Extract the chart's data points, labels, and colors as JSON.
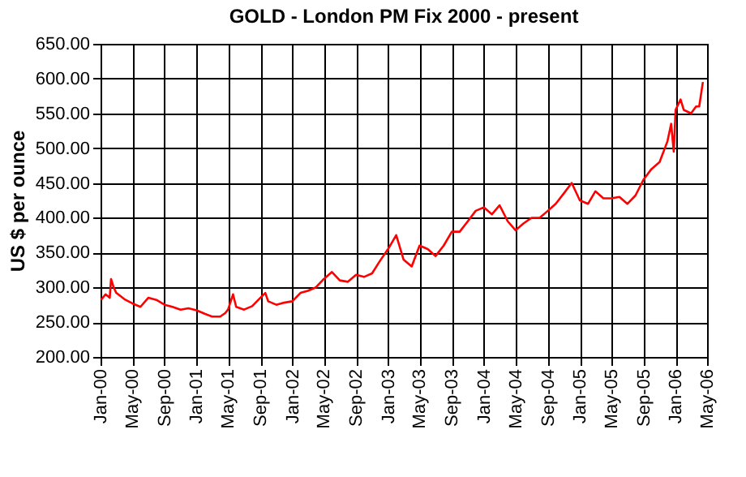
{
  "chart_data": {
    "type": "line",
    "title": "GOLD - London PM Fix 2000 - present",
    "ylabel": "US $ per ounce",
    "grid": true,
    "marker": "none",
    "line_style": "solid",
    "xlim": [
      "2000-01-01",
      "2006-05-01"
    ],
    "ylim": [
      200,
      650
    ],
    "yticks": [
      {
        "value": 200,
        "label": "200.00"
      },
      {
        "value": 250,
        "label": "250.00"
      },
      {
        "value": 300,
        "label": "300.00"
      },
      {
        "value": 350,
        "label": "350.00"
      },
      {
        "value": 400,
        "label": "400.00"
      },
      {
        "value": 450,
        "label": "450.00"
      },
      {
        "value": 500,
        "label": "500.00"
      },
      {
        "value": 550,
        "label": "550.00"
      },
      {
        "value": 600,
        "label": "600.00"
      },
      {
        "value": 650,
        "label": "650.00"
      }
    ],
    "xticks": [
      {
        "value": "2000-01-01",
        "label": "Jan-00"
      },
      {
        "value": "2000-05-01",
        "label": "May-00"
      },
      {
        "value": "2000-09-01",
        "label": "Sep-00"
      },
      {
        "value": "2001-01-01",
        "label": "Jan-01"
      },
      {
        "value": "2001-05-01",
        "label": "May-01"
      },
      {
        "value": "2001-09-01",
        "label": "Sep-01"
      },
      {
        "value": "2002-01-01",
        "label": "Jan-02"
      },
      {
        "value": "2002-05-01",
        "label": "May-02"
      },
      {
        "value": "2002-09-01",
        "label": "Sep-02"
      },
      {
        "value": "2003-01-01",
        "label": "Jan-03"
      },
      {
        "value": "2003-05-01",
        "label": "May-03"
      },
      {
        "value": "2003-09-01",
        "label": "Sep-03"
      },
      {
        "value": "2004-01-01",
        "label": "Jan-04"
      },
      {
        "value": "2004-05-01",
        "label": "May-04"
      },
      {
        "value": "2004-09-01",
        "label": "Sep-04"
      },
      {
        "value": "2005-01-01",
        "label": "Jan-05"
      },
      {
        "value": "2005-05-01",
        "label": "May-05"
      },
      {
        "value": "2005-09-01",
        "label": "Sep-05"
      },
      {
        "value": "2006-01-01",
        "label": "Jan-06"
      },
      {
        "value": "2006-05-01",
        "label": "May-06"
      }
    ],
    "series": [
      {
        "color": "#ff0000",
        "x": [
          "2000-01-03",
          "2000-01-20",
          "2000-02-05",
          "2000-02-10",
          "2000-02-20",
          "2000-03-01",
          "2000-04-01",
          "2000-05-01",
          "2000-06-01",
          "2000-07-01",
          "2000-08-01",
          "2000-09-01",
          "2000-10-01",
          "2000-11-01",
          "2000-12-01",
          "2001-01-01",
          "2001-02-01",
          "2001-03-01",
          "2001-04-01",
          "2001-04-20",
          "2001-05-01",
          "2001-05-20",
          "2001-06-01",
          "2001-07-01",
          "2001-08-01",
          "2001-09-01",
          "2001-09-20",
          "2001-10-01",
          "2001-11-01",
          "2001-12-01",
          "2002-01-01",
          "2002-02-01",
          "2002-03-01",
          "2002-04-01",
          "2002-05-01",
          "2002-06-01",
          "2002-07-01",
          "2002-08-01",
          "2002-09-01",
          "2002-10-01",
          "2002-11-01",
          "2002-12-01",
          "2003-01-01",
          "2003-02-01",
          "2003-03-01",
          "2003-04-01",
          "2003-05-01",
          "2003-06-01",
          "2003-07-01",
          "2003-08-01",
          "2003-09-01",
          "2003-10-01",
          "2003-11-01",
          "2003-12-01",
          "2004-01-01",
          "2004-02-01",
          "2004-03-01",
          "2004-04-01",
          "2004-05-01",
          "2004-06-01",
          "2004-07-01",
          "2004-08-01",
          "2004-09-01",
          "2004-10-01",
          "2004-11-01",
          "2004-12-01",
          "2005-01-01",
          "2005-02-01",
          "2005-03-01",
          "2005-04-01",
          "2005-05-01",
          "2005-06-01",
          "2005-07-01",
          "2005-08-01",
          "2005-09-01",
          "2005-10-01",
          "2005-11-01",
          "2005-12-01",
          "2005-12-15",
          "2005-12-25",
          "2006-01-01",
          "2006-01-20",
          "2006-02-01",
          "2006-03-01",
          "2006-03-20",
          "2006-04-01",
          "2006-04-15"
        ],
        "values": [
          282,
          290,
          285,
          312,
          300,
          292,
          283,
          277,
          272,
          285,
          282,
          275,
          272,
          268,
          270,
          267,
          262,
          258,
          258,
          263,
          268,
          290,
          272,
          268,
          273,
          285,
          292,
          280,
          275,
          278,
          280,
          292,
          295,
          300,
          312,
          322,
          310,
          308,
          318,
          315,
          320,
          338,
          355,
          375,
          340,
          330,
          360,
          355,
          345,
          360,
          380,
          380,
          395,
          410,
          415,
          405,
          418,
          395,
          382,
          392,
          400,
          400,
          410,
          420,
          435,
          450,
          425,
          420,
          438,
          428,
          428,
          430,
          420,
          432,
          455,
          470,
          480,
          510,
          535,
          495,
          555,
          570,
          555,
          550,
          560,
          560,
          595
        ]
      }
    ]
  }
}
